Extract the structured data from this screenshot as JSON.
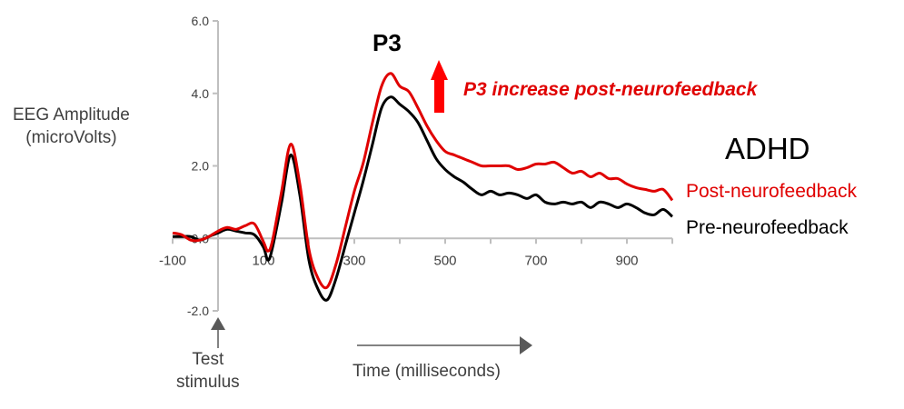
{
  "chart_data": {
    "type": "line",
    "title": "P3",
    "xlabel": "Time (milliseconds)",
    "ylabel_line1": "EEG Amplitude",
    "ylabel_line2": "(microVolts)",
    "xlim": [
      -100,
      1000
    ],
    "ylim": [
      -2.0,
      6.0
    ],
    "xticks": [
      -100,
      100,
      300,
      500,
      700,
      900
    ],
    "xtick_labels": [
      "-100",
      "100",
      "300",
      "500",
      "700",
      "900"
    ],
    "yticks": [
      -2.0,
      0.0,
      2.0,
      4.0,
      6.0
    ],
    "ytick_labels": [
      "-2.0",
      "0.0",
      "2.0",
      "4.0",
      "6.0"
    ],
    "grid": false,
    "group_label": "ADHD",
    "annotation": "P3 increase post-neurofeedback",
    "stimulus_label_line1": "Test",
    "stimulus_label_line2": "stimulus",
    "colors": {
      "post": "#e00000",
      "pre": "#000000",
      "axis": "#bfbfbf",
      "text": "#404040",
      "arrow": "#ff0000"
    },
    "x": [
      -100,
      -80,
      -60,
      -40,
      -20,
      0,
      20,
      40,
      60,
      80,
      100,
      110,
      120,
      140,
      160,
      180,
      200,
      220,
      240,
      260,
      280,
      300,
      320,
      340,
      360,
      380,
      400,
      420,
      440,
      460,
      480,
      500,
      520,
      540,
      560,
      580,
      600,
      620,
      640,
      660,
      680,
      700,
      720,
      740,
      760,
      780,
      800,
      820,
      840,
      860,
      880,
      900,
      920,
      940,
      960,
      980,
      1000
    ],
    "series": [
      {
        "name": "Post-neurofeedback",
        "values": [
          0.15,
          0.1,
          -0.05,
          -0.05,
          0.05,
          0.2,
          0.3,
          0.25,
          0.35,
          0.4,
          -0.1,
          -0.35,
          -0.05,
          1.3,
          2.6,
          1.5,
          -0.3,
          -1.1,
          -1.35,
          -0.7,
          0.3,
          1.3,
          2.1,
          3.2,
          4.2,
          4.55,
          4.2,
          4.05,
          3.6,
          3.1,
          2.7,
          2.4,
          2.3,
          2.2,
          2.1,
          2.0,
          2.0,
          2.0,
          2.0,
          1.9,
          1.95,
          2.05,
          2.05,
          2.1,
          1.95,
          1.8,
          1.85,
          1.7,
          1.8,
          1.65,
          1.65,
          1.5,
          1.4,
          1.35,
          1.3,
          1.35,
          1.05
        ]
      },
      {
        "name": "Pre-neurofeedback",
        "values": [
          0.05,
          0.05,
          0.05,
          -0.05,
          0.05,
          0.15,
          0.25,
          0.2,
          0.15,
          0.1,
          -0.25,
          -0.6,
          -0.25,
          1.0,
          2.3,
          1.2,
          -0.6,
          -1.4,
          -1.7,
          -1.1,
          -0.2,
          0.7,
          1.6,
          2.6,
          3.6,
          3.9,
          3.7,
          3.5,
          3.2,
          2.7,
          2.2,
          1.9,
          1.7,
          1.55,
          1.35,
          1.2,
          1.3,
          1.2,
          1.25,
          1.2,
          1.1,
          1.2,
          1.0,
          0.95,
          1.0,
          0.95,
          1.0,
          0.85,
          1.0,
          0.95,
          0.85,
          0.95,
          0.85,
          0.7,
          0.65,
          0.8,
          0.6
        ]
      }
    ]
  }
}
